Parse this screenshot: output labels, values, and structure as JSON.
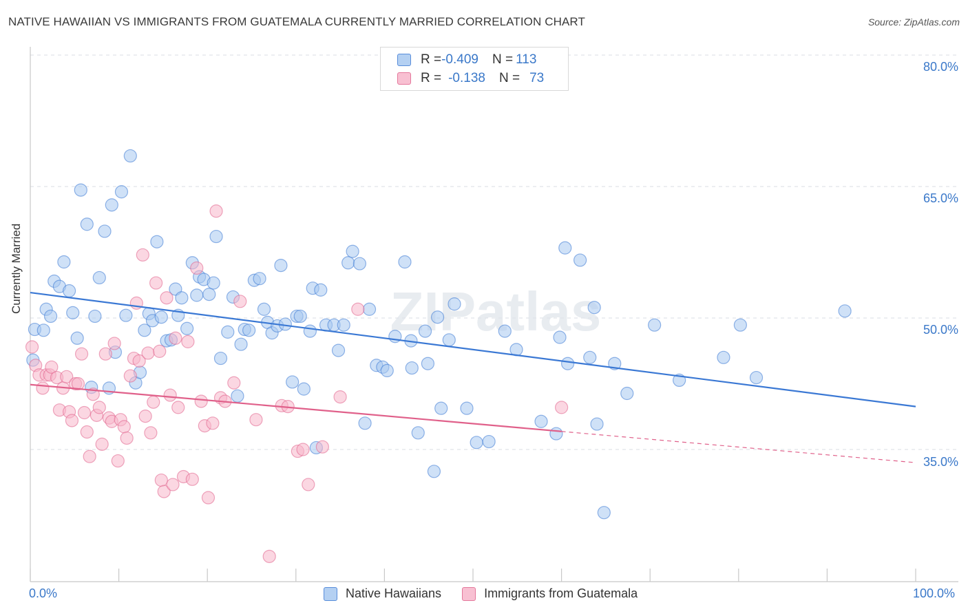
{
  "title": "NATIVE HAWAIIAN VS IMMIGRANTS FROM GUATEMALA CURRENTLY MARRIED CORRELATION CHART",
  "source": "Source: ZipAtlas.com",
  "watermark": "ZIPatlas",
  "legend": {
    "rows": [
      {
        "r_label": "R = ",
        "r_value": "-0.409",
        "n_label": "N = ",
        "n_value": "113",
        "color": "#a8c8f0"
      },
      {
        "r_label": "R = ",
        "r_value": "-0.138",
        "n_label": "N = ",
        "n_value": "73",
        "color": "#f7b6cb"
      }
    ]
  },
  "chart_data": {
    "type": "scatter",
    "title": "NATIVE HAWAIIAN VS IMMIGRANTS FROM GUATEMALA CURRENTLY MARRIED CORRELATION CHART",
    "xlabel": "",
    "ylabel": "Currently Married",
    "xlim": [
      0,
      100
    ],
    "ylim": [
      20,
      82
    ],
    "x_tick_labels": [
      "0.0%",
      "100.0%"
    ],
    "y_ticks": [
      35,
      50,
      65,
      80
    ],
    "y_tick_labels": [
      "35.0%",
      "50.0%",
      "65.0%",
      "80.0%"
    ],
    "grid": true,
    "series": [
      {
        "name": "Native Hawaiians",
        "color": "#3a78d4",
        "fill": "#a8c8f0",
        "trend": {
          "x": [
            0,
            100
          ],
          "y": [
            52.9,
            39.9
          ],
          "dashed_from": null
        },
        "points": [
          [
            0.3,
            45.2
          ],
          [
            0.5,
            48.7
          ],
          [
            1.5,
            48.6
          ],
          [
            1.8,
            51.0
          ],
          [
            2.3,
            50.2
          ],
          [
            2.7,
            54.2
          ],
          [
            3.3,
            53.6
          ],
          [
            3.8,
            56.4
          ],
          [
            4.4,
            53.1
          ],
          [
            4.8,
            50.6
          ],
          [
            5.3,
            47.7
          ],
          [
            5.7,
            64.6
          ],
          [
            6.4,
            60.7
          ],
          [
            6.9,
            42.1
          ],
          [
            7.3,
            50.2
          ],
          [
            7.8,
            54.6
          ],
          [
            8.4,
            59.9
          ],
          [
            8.9,
            42.0
          ],
          [
            9.2,
            62.9
          ],
          [
            9.6,
            46.1
          ],
          [
            10.3,
            64.4
          ],
          [
            10.8,
            50.3
          ],
          [
            11.3,
            68.5
          ],
          [
            11.9,
            42.6
          ],
          [
            12.4,
            43.8
          ],
          [
            12.9,
            48.6
          ],
          [
            13.4,
            50.5
          ],
          [
            13.8,
            49.7
          ],
          [
            14.3,
            58.7
          ],
          [
            14.8,
            50.1
          ],
          [
            15.4,
            47.4
          ],
          [
            15.9,
            47.5
          ],
          [
            16.4,
            53.3
          ],
          [
            16.7,
            50.3
          ],
          [
            17.1,
            52.3
          ],
          [
            17.7,
            48.8
          ],
          [
            18.3,
            56.3
          ],
          [
            18.8,
            52.6
          ],
          [
            19.1,
            54.7
          ],
          [
            19.6,
            54.4
          ],
          [
            20.2,
            52.7
          ],
          [
            20.7,
            54.0
          ],
          [
            21.0,
            59.3
          ],
          [
            21.5,
            45.4
          ],
          [
            22.3,
            48.4
          ],
          [
            22.9,
            52.4
          ],
          [
            23.4,
            41.1
          ],
          [
            23.8,
            47.0
          ],
          [
            24.2,
            48.7
          ],
          [
            24.7,
            48.6
          ],
          [
            25.3,
            54.3
          ],
          [
            25.9,
            54.5
          ],
          [
            26.4,
            51.0
          ],
          [
            26.8,
            49.5
          ],
          [
            27.3,
            48.3
          ],
          [
            27.9,
            49.1
          ],
          [
            28.3,
            56.0
          ],
          [
            28.8,
            49.3
          ],
          [
            29.6,
            42.7
          ],
          [
            30.1,
            50.2
          ],
          [
            30.5,
            50.2
          ],
          [
            30.9,
            41.9
          ],
          [
            31.6,
            48.5
          ],
          [
            31.9,
            53.4
          ],
          [
            32.3,
            35.2
          ],
          [
            32.8,
            53.2
          ],
          [
            33.4,
            49.2
          ],
          [
            34.3,
            49.2
          ],
          [
            34.8,
            46.3
          ],
          [
            35.4,
            49.2
          ],
          [
            35.9,
            56.3
          ],
          [
            36.4,
            57.6
          ],
          [
            37.2,
            56.2
          ],
          [
            37.8,
            38.0
          ],
          [
            38.3,
            51.0
          ],
          [
            39.1,
            44.6
          ],
          [
            39.8,
            44.4
          ],
          [
            40.3,
            44.0
          ],
          [
            41.2,
            47.9
          ],
          [
            42.3,
            56.4
          ],
          [
            43.0,
            47.4
          ],
          [
            43.1,
            44.3
          ],
          [
            43.8,
            36.9
          ],
          [
            44.6,
            48.5
          ],
          [
            44.9,
            44.8
          ],
          [
            45.6,
            32.5
          ],
          [
            46.0,
            50.1
          ],
          [
            46.4,
            39.7
          ],
          [
            47.3,
            47.5
          ],
          [
            47.9,
            51.6
          ],
          [
            49.3,
            39.7
          ],
          [
            50.4,
            35.8
          ],
          [
            51.8,
            35.9
          ],
          [
            53.6,
            48.5
          ],
          [
            54.9,
            46.4
          ],
          [
            57.7,
            38.2
          ],
          [
            59.4,
            36.8
          ],
          [
            59.8,
            47.8
          ],
          [
            60.4,
            58.0
          ],
          [
            60.7,
            44.8
          ],
          [
            62.1,
            56.6
          ],
          [
            63.2,
            45.5
          ],
          [
            63.7,
            51.2
          ],
          [
            64.0,
            37.9
          ],
          [
            64.8,
            27.8
          ],
          [
            66.0,
            44.8
          ],
          [
            67.4,
            41.4
          ],
          [
            70.5,
            49.2
          ],
          [
            73.3,
            42.9
          ],
          [
            78.3,
            45.5
          ],
          [
            80.2,
            49.2
          ],
          [
            82.0,
            43.2
          ],
          [
            92.0,
            50.8
          ]
        ]
      },
      {
        "name": "Immigrants from Guatemala",
        "color": "#e0608a",
        "fill": "#f7b6cb",
        "trend": {
          "x": [
            0,
            100
          ],
          "y": [
            42.4,
            33.5
          ],
          "dashed_from": 60
        },
        "points": [
          [
            0.2,
            46.7
          ],
          [
            0.6,
            44.6
          ],
          [
            1.0,
            43.5
          ],
          [
            1.4,
            42.0
          ],
          [
            1.8,
            43.5
          ],
          [
            2.2,
            43.5
          ],
          [
            2.4,
            44.4
          ],
          [
            3.0,
            43.2
          ],
          [
            3.3,
            39.5
          ],
          [
            3.7,
            42.0
          ],
          [
            4.1,
            43.3
          ],
          [
            4.4,
            39.3
          ],
          [
            4.7,
            38.3
          ],
          [
            5.1,
            42.5
          ],
          [
            5.4,
            42.5
          ],
          [
            5.8,
            45.9
          ],
          [
            6.1,
            39.2
          ],
          [
            6.4,
            37.0
          ],
          [
            6.7,
            34.2
          ],
          [
            7.1,
            41.3
          ],
          [
            7.5,
            38.9
          ],
          [
            7.8,
            39.8
          ],
          [
            8.1,
            35.6
          ],
          [
            8.5,
            45.9
          ],
          [
            8.9,
            38.6
          ],
          [
            9.2,
            38.2
          ],
          [
            9.5,
            47.1
          ],
          [
            9.9,
            33.7
          ],
          [
            10.2,
            38.4
          ],
          [
            10.6,
            37.6
          ],
          [
            10.9,
            36.3
          ],
          [
            11.3,
            43.4
          ],
          [
            11.7,
            45.4
          ],
          [
            12.0,
            51.7
          ],
          [
            12.3,
            45.1
          ],
          [
            12.7,
            57.2
          ],
          [
            13.0,
            38.8
          ],
          [
            13.3,
            46.0
          ],
          [
            13.6,
            36.9
          ],
          [
            13.9,
            40.4
          ],
          [
            14.2,
            54.0
          ],
          [
            14.6,
            46.2
          ],
          [
            14.8,
            31.5
          ],
          [
            15.1,
            30.2
          ],
          [
            15.4,
            52.3
          ],
          [
            15.8,
            41.2
          ],
          [
            16.1,
            31.0
          ],
          [
            16.4,
            47.7
          ],
          [
            16.7,
            39.8
          ],
          [
            17.3,
            31.9
          ],
          [
            17.8,
            47.3
          ],
          [
            18.3,
            31.6
          ],
          [
            18.8,
            55.7
          ],
          [
            19.3,
            40.5
          ],
          [
            19.7,
            37.7
          ],
          [
            20.1,
            29.5
          ],
          [
            20.6,
            38.0
          ],
          [
            21.0,
            62.2
          ],
          [
            21.5,
            40.9
          ],
          [
            22.0,
            40.5
          ],
          [
            23.0,
            42.6
          ],
          [
            23.7,
            51.9
          ],
          [
            25.5,
            38.4
          ],
          [
            27.0,
            22.8
          ],
          [
            28.4,
            40.0
          ],
          [
            29.1,
            39.9
          ],
          [
            30.2,
            34.8
          ],
          [
            30.8,
            35.0
          ],
          [
            31.4,
            31.0
          ],
          [
            33.0,
            35.3
          ],
          [
            35.0,
            41.0
          ],
          [
            37.0,
            51.0
          ],
          [
            60.0,
            39.8
          ]
        ]
      }
    ]
  },
  "bottom_legend": [
    {
      "label": "Native Hawaiians",
      "color": "#a8c8f0"
    },
    {
      "label": "Immigrants from Guatemala",
      "color": "#f7b6cb"
    }
  ]
}
